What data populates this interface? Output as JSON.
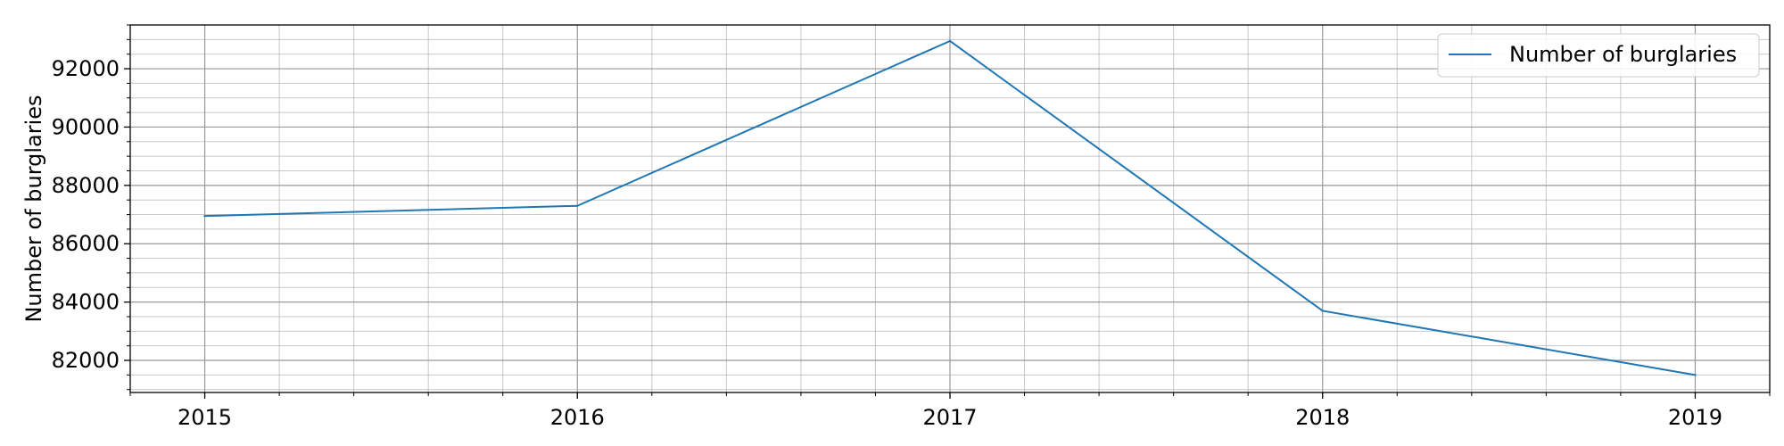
{
  "chart_data": {
    "type": "line",
    "title": "",
    "xlabel": "",
    "ylabel": "Number of burglaries",
    "x": [
      2015,
      2016,
      2017,
      2018,
      2019
    ],
    "xticks": [
      "2015",
      "2016",
      "2017",
      "2018",
      "2019"
    ],
    "xlim": [
      2014.8,
      2019.2
    ],
    "ylim": [
      80900,
      93500
    ],
    "yticks": [
      "82000",
      "84000",
      "86000",
      "88000",
      "90000",
      "92000"
    ],
    "grid": "major-and-minor",
    "legend_position": "top-right",
    "series": [
      {
        "name": "Number of burglaries",
        "color": "#1f77b4",
        "values": [
          86950,
          87300,
          92950,
          83700,
          81500
        ]
      }
    ]
  }
}
